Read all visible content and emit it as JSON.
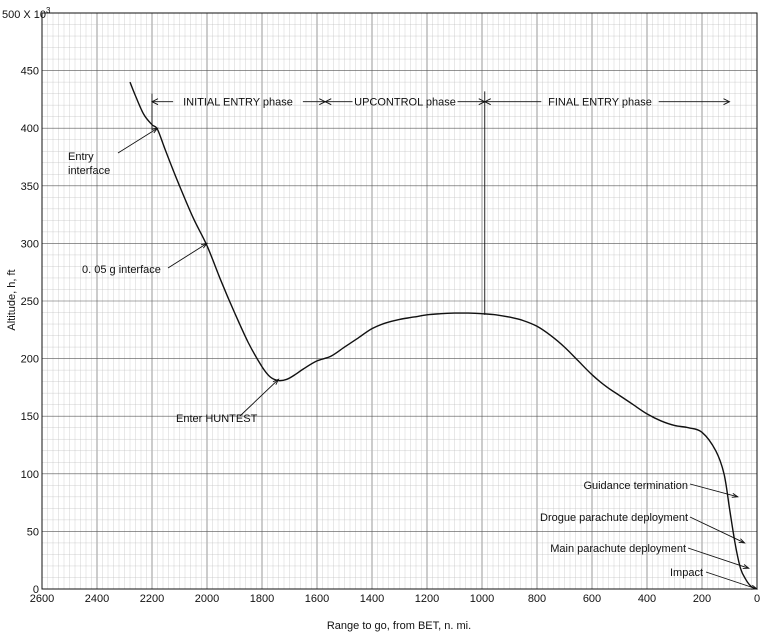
{
  "chart_data": {
    "type": "line",
    "xlabel": "Range to go, from BET, n. mi.",
    "ylabel": "Altitude, h, ft",
    "y_multiplier_label": "500 X 10",
    "y_multiplier_exp": "3",
    "xlim": [
      2600,
      0
    ],
    "ylim": [
      0,
      500
    ],
    "grid": true,
    "x_ticks": [
      "2600",
      "2400",
      "2200",
      "2000",
      "1800",
      "1600",
      "1400",
      "1200",
      "1000",
      "800",
      "600",
      "400",
      "200",
      "0"
    ],
    "y_ticks": [
      "50",
      "100",
      "150",
      "200",
      "250",
      "300",
      "350",
      "400",
      "450"
    ],
    "series": [
      {
        "x": [
          2280,
          2260,
          2230,
          2200,
          2180,
          2150,
          2100,
          2050,
          2000,
          1950,
          1900,
          1850,
          1800,
          1770,
          1740,
          1710,
          1680,
          1650,
          1600,
          1550,
          1500,
          1450,
          1400,
          1350,
          1300,
          1250,
          1200,
          1150,
          1100,
          1050,
          1000,
          950,
          900,
          850,
          800,
          750,
          700,
          650,
          600,
          550,
          500,
          450,
          400,
          350,
          300,
          250,
          200,
          150,
          120,
          100,
          80,
          60,
          40,
          20,
          0
        ],
        "y": [
          440,
          428,
          412,
          403,
          399,
          380,
          350,
          322,
          298,
          268,
          240,
          214,
          193,
          184,
          181,
          182,
          186,
          191,
          198,
          202,
          210,
          218,
          226,
          231,
          234,
          236,
          238,
          239,
          239.5,
          239.5,
          239,
          238,
          236,
          233,
          228,
          220,
          210,
          198,
          186,
          176,
          168,
          160,
          152,
          146,
          142,
          140,
          136,
          120,
          100,
          70,
          40,
          18,
          8,
          2,
          0
        ]
      }
    ],
    "phases": [
      {
        "label": "INITIAL ENTRY phase",
        "start": 2200,
        "end": 1570
      },
      {
        "label": "UPCONTROL phase",
        "start": 1570,
        "end": 990
      },
      {
        "label": "FINAL ENTRY phase",
        "start": 990,
        "end": 100
      }
    ],
    "annotations": [
      {
        "label_line1": "Entry",
        "label_line2": "interface",
        "x": 2180,
        "y": 400
      },
      {
        "label": "0. 05 g interface",
        "x": 2000,
        "y": 300
      },
      {
        "label": "Enter HUNTEST",
        "x": 1740,
        "y": 182
      },
      {
        "label": "Guidance termination",
        "x": 70,
        "y": 80
      },
      {
        "label": "Drogue parachute deployment",
        "x": 45,
        "y": 40
      },
      {
        "label": "Main parachute deployment",
        "x": 30,
        "y": 18
      },
      {
        "label": "Impact",
        "x": 0,
        "y": 0
      }
    ]
  }
}
